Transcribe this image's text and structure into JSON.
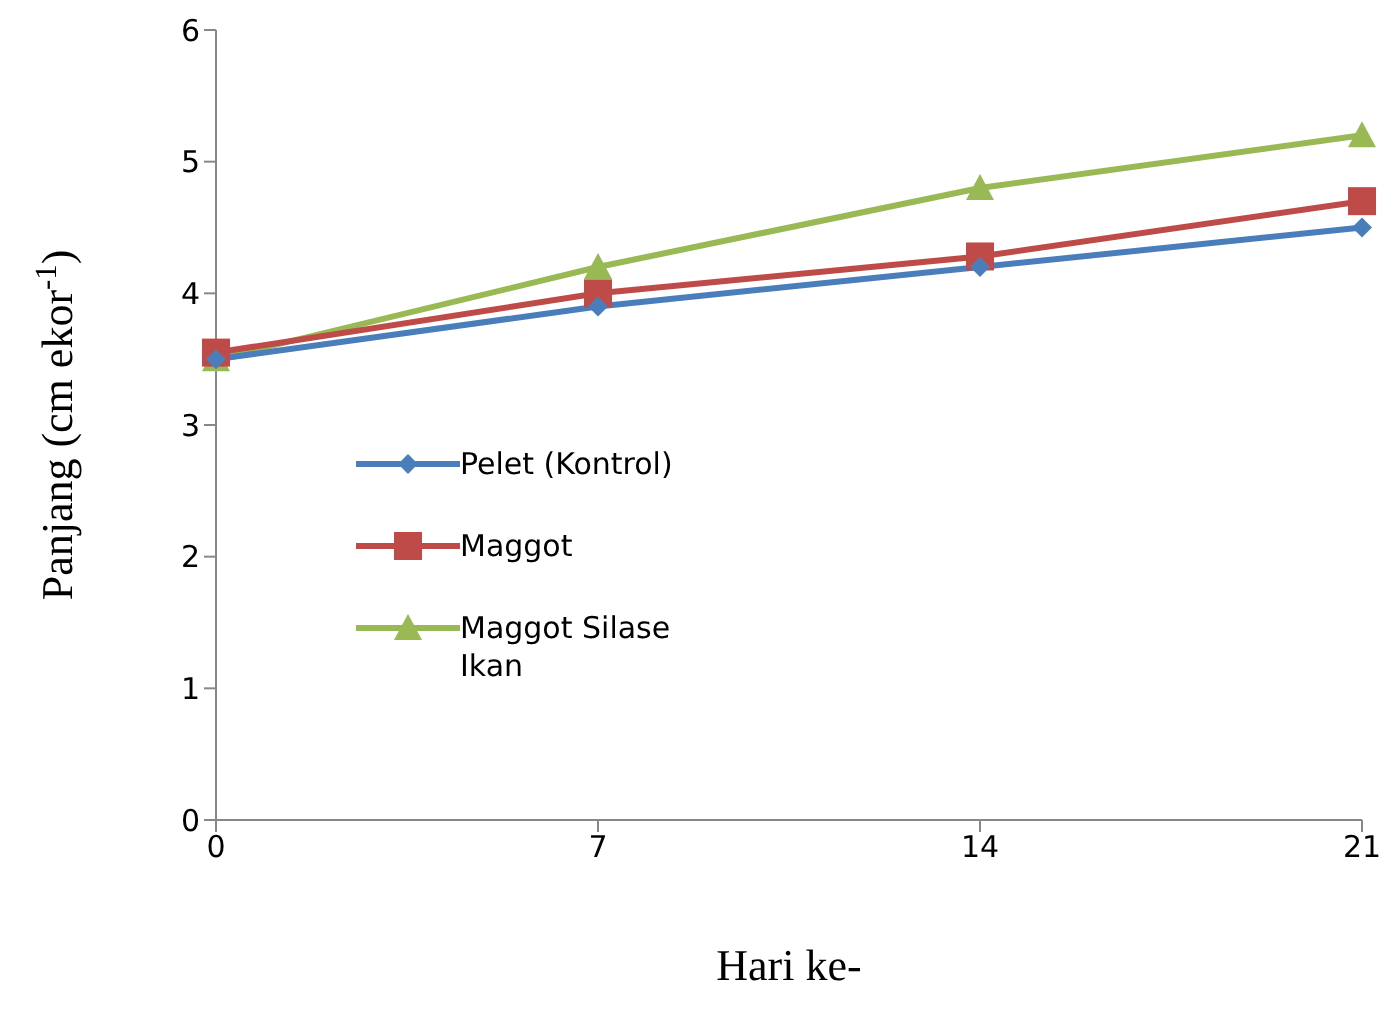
{
  "chart_data": {
    "type": "line",
    "xlabel": "Hari ke-",
    "ylabel": "Panjang (cm ekor$^{-1}$)",
    "categories": [
      "0",
      "7",
      "14",
      "21"
    ],
    "ylim": [
      0,
      6
    ],
    "yticks": [
      0,
      1,
      2,
      3,
      4,
      5,
      6
    ],
    "grid": false,
    "legend": "left",
    "series": [
      {
        "name": "Pelet (Kontrol)",
        "color": "#4a7ebb",
        "marker": "diamond",
        "values": [
          3.5,
          3.9,
          4.2,
          4.5
        ]
      },
      {
        "name": "Maggot",
        "color": "#be4b48",
        "marker": "square",
        "values": [
          3.55,
          4.0,
          4.28,
          4.7
        ]
      },
      {
        "name": "Maggot Silase Ikan",
        "color": "#98b954",
        "marker": "triangle",
        "values": [
          3.5,
          4.2,
          4.8,
          5.2
        ]
      }
    ]
  }
}
